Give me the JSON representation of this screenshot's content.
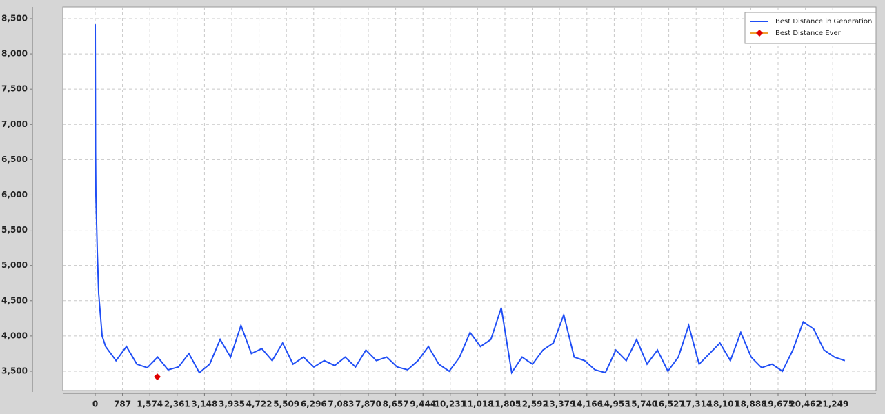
{
  "chart_data": {
    "type": "line",
    "xlim": [
      -934,
      22497
    ],
    "ylim": [
      3226,
      8666
    ],
    "xticks": [
      0,
      787,
      {
        "value": 1574,
        "label": "1,574"
      },
      {
        "value": 2361,
        "label": "2,361"
      },
      {
        "value": 3148,
        "label": "3,148"
      },
      {
        "value": 3935,
        "label": "3,935"
      },
      {
        "value": 4722,
        "label": "4,722"
      },
      {
        "value": 5509,
        "label": "5,509"
      },
      {
        "value": 6296,
        "label": "6,296"
      },
      {
        "value": 7083,
        "label": "7,083"
      },
      {
        "value": 7870,
        "label": "7,870"
      },
      {
        "value": 8657,
        "label": "8,657"
      },
      {
        "value": 9444,
        "label": "9,444"
      },
      {
        "value": 10231,
        "label": "10,231"
      },
      {
        "value": 11018,
        "label": "11,018"
      },
      {
        "value": 11805,
        "label": "11,805"
      },
      {
        "value": 12592,
        "label": "12,592"
      },
      {
        "value": 13379,
        "label": "13,379"
      },
      {
        "value": 14166,
        "label": "14,166"
      },
      {
        "value": 14953,
        "label": "14,953"
      },
      {
        "value": 15740,
        "label": "15,740"
      },
      {
        "value": 16527,
        "label": "16,527"
      },
      {
        "value": 17314,
        "label": "17,314"
      },
      {
        "value": 18101,
        "label": "18,101"
      },
      {
        "value": 18888,
        "label": "18,888"
      },
      {
        "value": 19675,
        "label": "19,675"
      },
      {
        "value": 20462,
        "label": "20,462"
      },
      {
        "value": 21249,
        "label": "21,249"
      }
    ],
    "yticks": [
      {
        "value": 3500,
        "label": "3,500"
      },
      {
        "value": 4000,
        "label": "4,000"
      },
      {
        "value": 4500,
        "label": "4,500"
      },
      {
        "value": 5000,
        "label": "5,000"
      },
      {
        "value": 5500,
        "label": "5,500"
      },
      {
        "value": 6000,
        "label": "6,000"
      },
      {
        "value": 6500,
        "label": "6,500"
      },
      {
        "value": 7000,
        "label": "7,000"
      },
      {
        "value": 7500,
        "label": "7,500"
      },
      {
        "value": 8000,
        "label": "8,000"
      },
      {
        "value": 8500,
        "label": "8,500"
      }
    ],
    "grid": true,
    "legend": "top-right",
    "series": [
      {
        "name": "Best Distance in Generation",
        "color": "#1f4ef5",
        "x": [
          0,
          5,
          10,
          20,
          40,
          60,
          100,
          150,
          200,
          300,
          450,
          600,
          900,
          1200,
          1500,
          1800,
          2100,
          2400,
          2700,
          3000,
          3300,
          3600,
          3900,
          4200,
          4500,
          4800,
          5100,
          5400,
          5700,
          6000,
          6300,
          6600,
          6900,
          7200,
          7500,
          7800,
          8100,
          8400,
          8700,
          9000,
          9300,
          9600,
          9900,
          10200,
          10500,
          10800,
          11100,
          11400,
          11700,
          12000,
          12300,
          12600,
          12900,
          13200,
          13500,
          13800,
          14100,
          14400,
          14700,
          15000,
          15300,
          15600,
          15900,
          16200,
          16500,
          16800,
          17100,
          17400,
          17700,
          18000,
          18300,
          18600,
          18900,
          19200,
          19500,
          19800,
          20100,
          20400,
          20700,
          21000,
          21300,
          21600
        ],
        "values": [
          8420,
          7600,
          6600,
          6000,
          5600,
          5200,
          4600,
          4300,
          4000,
          3850,
          3750,
          3650,
          3850,
          3600,
          3550,
          3700,
          3520,
          3560,
          3750,
          3480,
          3600,
          3950,
          3700,
          4150,
          3750,
          3820,
          3650,
          3900,
          3600,
          3700,
          3560,
          3650,
          3580,
          3700,
          3560,
          3800,
          3650,
          3700,
          3560,
          3520,
          3650,
          3850,
          3600,
          3500,
          3700,
          4050,
          3850,
          3950,
          4400,
          3480,
          3700,
          3600,
          3800,
          3900,
          4300,
          3700,
          3650,
          3520,
          3480,
          3800,
          3650,
          3950,
          3600,
          3800,
          3500,
          3700,
          4150,
          3600,
          3750,
          3900,
          3650,
          4050,
          3700,
          3550,
          3600,
          3500,
          3800,
          4200,
          4100,
          3800,
          3700,
          3650
        ]
      },
      {
        "name": "Best Distance Ever",
        "color": "#f0a030",
        "marker_color": "#e00000",
        "x": [
          1790
        ],
        "values": [
          3420
        ]
      }
    ]
  }
}
